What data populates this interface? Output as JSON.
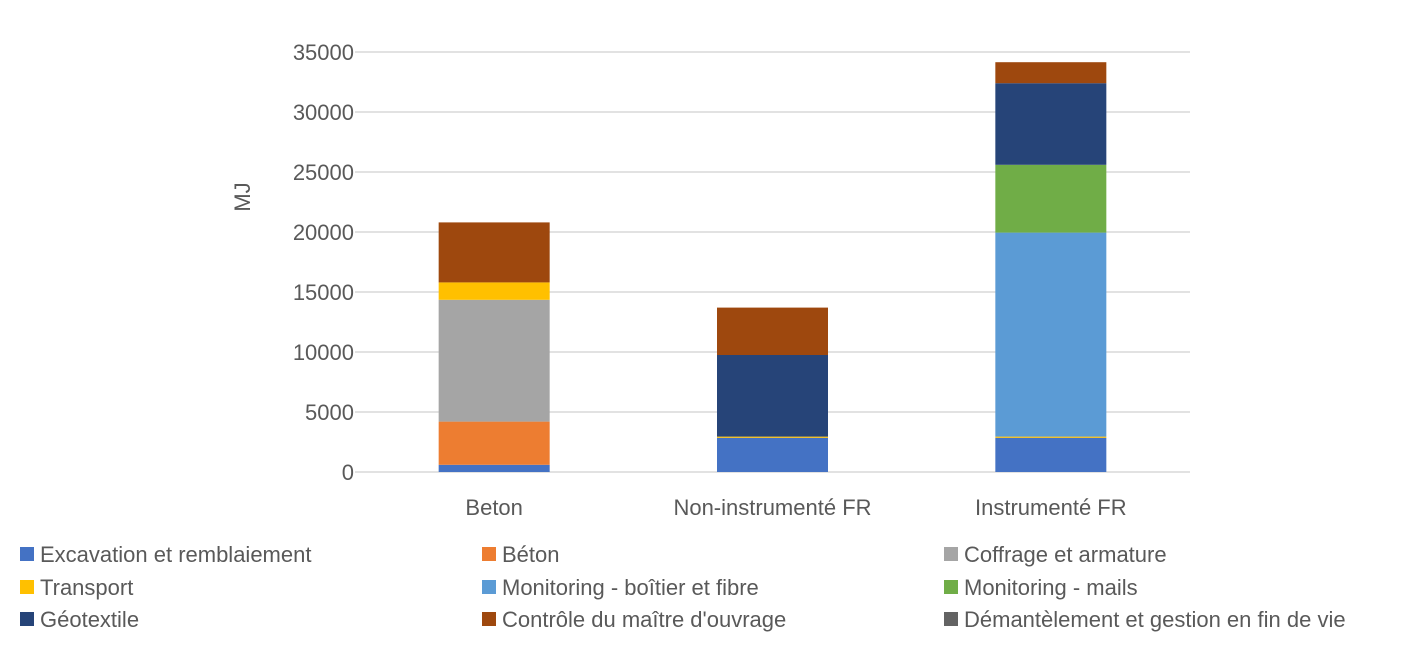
{
  "chart_data": {
    "type": "bar",
    "stacked": true,
    "ylabel": "MJ",
    "xlabel": "",
    "ylim": [
      0,
      35000
    ],
    "yticks": [
      "0",
      "5000",
      "10000",
      "15000",
      "20000",
      "25000",
      "30000",
      "35000"
    ],
    "grid": true,
    "legend_position": "bottom",
    "categories": [
      "Beton",
      "Non-instrumenté FR",
      "Instrumenté FR"
    ],
    "series": [
      {
        "name": "Excavation et remblaiement",
        "color": "#4472C4",
        "values": [
          600,
          2850,
          2850
        ]
      },
      {
        "name": "Béton",
        "color": "#ED7D31",
        "values": [
          3600,
          0,
          0
        ]
      },
      {
        "name": "Coffrage et armature",
        "color": "#A5A5A5",
        "values": [
          10150,
          0,
          0
        ]
      },
      {
        "name": "Transport",
        "color": "#FFC000",
        "values": [
          1450,
          100,
          100
        ]
      },
      {
        "name": "Monitoring - boîtier et fibre",
        "color": "#5B9BD5",
        "values": [
          0,
          0,
          17000
        ]
      },
      {
        "name": "Monitoring - mails",
        "color": "#70AD47",
        "values": [
          0,
          0,
          5650
        ]
      },
      {
        "name": "Géotextile",
        "color": "#264478",
        "values": [
          0,
          6800,
          6800
        ]
      },
      {
        "name": "Contrôle du maître d'ouvrage",
        "color": "#9E480E",
        "values": [
          5000,
          3950,
          1750
        ]
      },
      {
        "name": "Démantèlement et gestion en fin de vie",
        "color": "#636363",
        "values": [
          0,
          0,
          0
        ]
      }
    ]
  }
}
